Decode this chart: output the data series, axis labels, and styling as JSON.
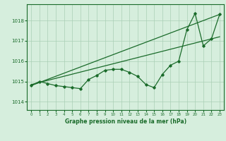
{
  "xlabel": "Graphe pression niveau de la mer (hPa)",
  "ylim": [
    1013.6,
    1018.8
  ],
  "xlim": [
    -0.5,
    23.5
  ],
  "yticks": [
    1014,
    1015,
    1016,
    1017,
    1018
  ],
  "xticks": [
    0,
    1,
    2,
    3,
    4,
    5,
    6,
    7,
    8,
    9,
    10,
    11,
    12,
    13,
    14,
    15,
    16,
    17,
    18,
    19,
    20,
    21,
    22,
    23
  ],
  "background_color": "#d6eedd",
  "grid_color": "#aacfb5",
  "line_color": "#1a6b2a",
  "line1": {
    "x": [
      0,
      1,
      2,
      3,
      4,
      5,
      6,
      7,
      8,
      9,
      10,
      11,
      12,
      13,
      14,
      15,
      16,
      17,
      18,
      19,
      20,
      21,
      22,
      23
    ],
    "y": [
      1014.8,
      1015.0,
      1014.9,
      1014.8,
      1014.75,
      1014.7,
      1014.65,
      1015.1,
      1015.3,
      1015.55,
      1015.6,
      1015.6,
      1015.45,
      1015.25,
      1014.85,
      1014.7,
      1015.35,
      1015.8,
      1016.0,
      1017.55,
      1018.35,
      1016.75,
      1017.1,
      1018.3
    ]
  },
  "line2": {
    "x": [
      0,
      23
    ],
    "y": [
      1014.8,
      1018.3
    ]
  },
  "line3": {
    "x": [
      0,
      23
    ],
    "y": [
      1014.85,
      1017.2
    ]
  }
}
